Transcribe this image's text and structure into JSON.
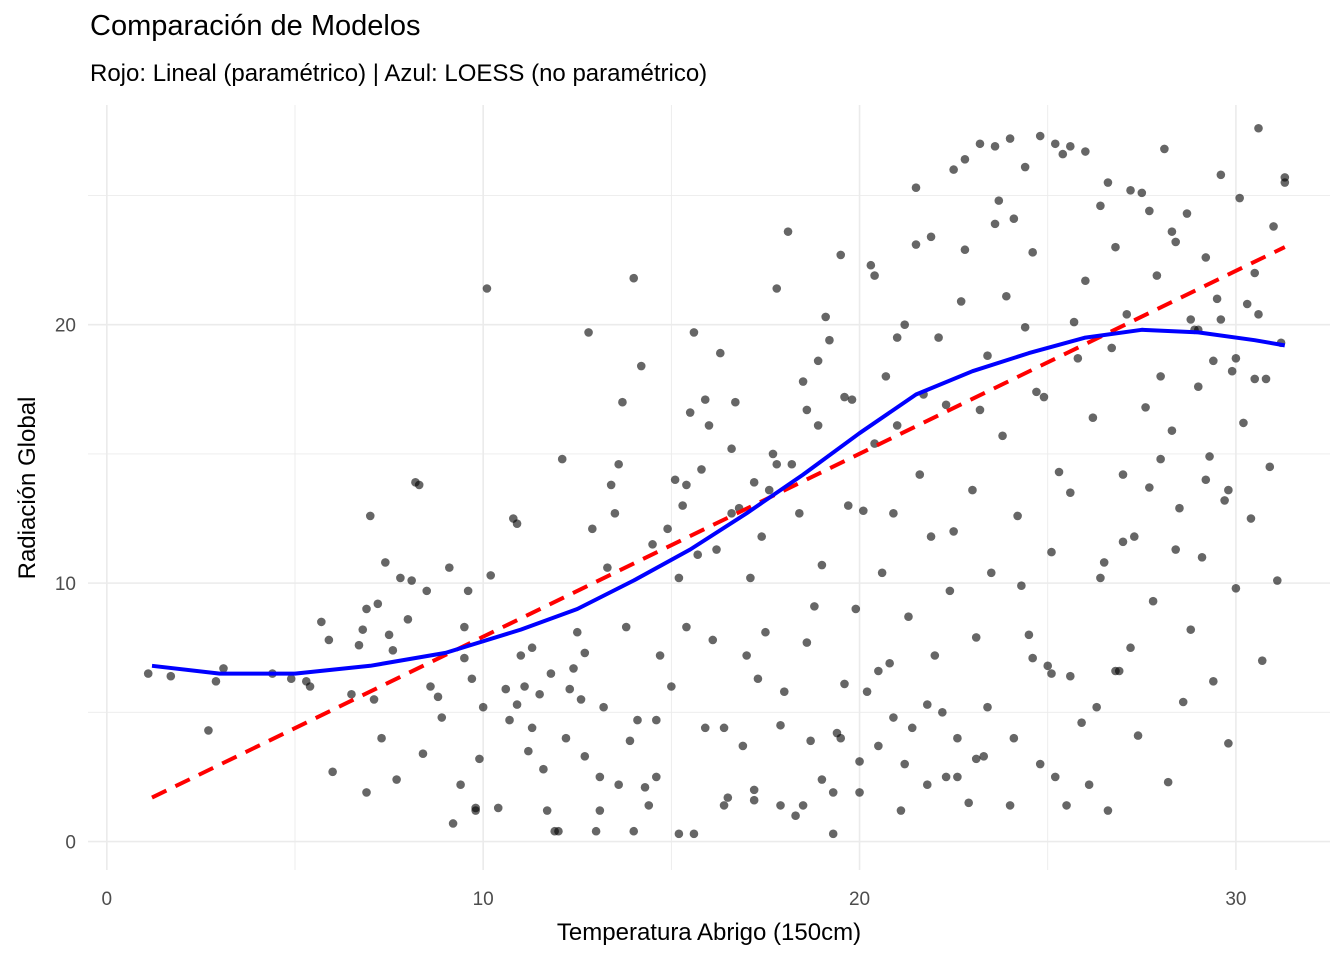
{
  "chart_data": {
    "type": "scatter",
    "title": "Comparación de Modelos",
    "subtitle": "Rojo: Lineal (paramétrico) | Azul: LOESS (no paramétrico)",
    "xlabel": "Temperatura Abrigo (150cm)",
    "ylabel": "Radiación Global",
    "xlim": [
      -0.5,
      32.5
    ],
    "ylim": [
      -1.1,
      28.5
    ],
    "x_ticks": [
      0,
      10,
      20,
      30
    ],
    "y_ticks": [
      0,
      10,
      20
    ],
    "x_tick_labels": [
      "0",
      "10",
      "20",
      "30"
    ],
    "y_tick_labels": [
      "0",
      "10",
      "20"
    ],
    "grid": true,
    "points": [
      [
        1.1,
        6.5
      ],
      [
        1.7,
        6.4
      ],
      [
        2.7,
        4.3
      ],
      [
        2.9,
        6.2
      ],
      [
        3.1,
        6.7
      ],
      [
        4.4,
        6.5
      ],
      [
        4.9,
        6.3
      ],
      [
        5.3,
        6.2
      ],
      [
        5.4,
        6.0
      ],
      [
        5.7,
        8.5
      ],
      [
        5.9,
        7.8
      ],
      [
        6.0,
        2.7
      ],
      [
        6.5,
        5.7
      ],
      [
        6.7,
        7.6
      ],
      [
        6.8,
        8.2
      ],
      [
        6.9,
        9.0
      ],
      [
        6.9,
        1.9
      ],
      [
        7.0,
        12.6
      ],
      [
        7.1,
        5.5
      ],
      [
        7.2,
        9.2
      ],
      [
        7.3,
        4.0
      ],
      [
        7.4,
        10.8
      ],
      [
        7.5,
        8.0
      ],
      [
        7.6,
        7.4
      ],
      [
        7.7,
        2.4
      ],
      [
        7.8,
        10.2
      ],
      [
        8.0,
        8.6
      ],
      [
        8.1,
        10.1
      ],
      [
        8.2,
        13.9
      ],
      [
        8.3,
        13.8
      ],
      [
        8.4,
        3.4
      ],
      [
        8.5,
        9.7
      ],
      [
        8.6,
        6.0
      ],
      [
        8.8,
        5.6
      ],
      [
        8.9,
        4.8
      ],
      [
        9.1,
        10.6
      ],
      [
        9.4,
        2.2
      ],
      [
        9.5,
        7.1
      ],
      [
        9.5,
        8.3
      ],
      [
        9.6,
        9.7
      ],
      [
        9.7,
        6.3
      ],
      [
        9.8,
        1.2
      ],
      [
        9.9,
        3.2
      ],
      [
        10.0,
        5.2
      ],
      [
        10.1,
        21.4
      ],
      [
        10.2,
        10.3
      ],
      [
        10.4,
        1.3
      ],
      [
        10.6,
        5.9
      ],
      [
        10.7,
        4.7
      ],
      [
        10.8,
        12.5
      ],
      [
        10.9,
        12.3
      ],
      [
        11.0,
        7.2
      ],
      [
        11.1,
        6.0
      ],
      [
        11.2,
        3.5
      ],
      [
        11.3,
        7.5
      ],
      [
        11.5,
        5.7
      ],
      [
        11.6,
        2.8
      ],
      [
        11.7,
        1.2
      ],
      [
        11.8,
        6.5
      ],
      [
        11.9,
        0.4
      ],
      [
        12.1,
        14.8
      ],
      [
        12.2,
        4.0
      ],
      [
        12.3,
        5.9
      ],
      [
        12.4,
        6.7
      ],
      [
        12.5,
        8.1
      ],
      [
        12.6,
        5.5
      ],
      [
        12.7,
        7.3
      ],
      [
        12.8,
        19.7
      ],
      [
        12.9,
        12.1
      ],
      [
        13.0,
        0.4
      ],
      [
        13.1,
        2.5
      ],
      [
        13.2,
        5.2
      ],
      [
        13.3,
        10.6
      ],
      [
        13.4,
        13.8
      ],
      [
        13.5,
        12.7
      ],
      [
        13.6,
        14.6
      ],
      [
        13.7,
        17.0
      ],
      [
        13.8,
        8.3
      ],
      [
        13.9,
        3.9
      ],
      [
        14.0,
        21.8
      ],
      [
        14.1,
        4.7
      ],
      [
        14.2,
        18.4
      ],
      [
        14.3,
        2.1
      ],
      [
        14.4,
        1.4
      ],
      [
        14.5,
        11.5
      ],
      [
        14.6,
        2.5
      ],
      [
        14.7,
        7.2
      ],
      [
        14.9,
        12.1
      ],
      [
        15.0,
        6.0
      ],
      [
        15.1,
        14.0
      ],
      [
        15.2,
        10.2
      ],
      [
        15.3,
        13.0
      ],
      [
        15.4,
        8.3
      ],
      [
        15.5,
        16.6
      ],
      [
        15.6,
        19.7
      ],
      [
        15.7,
        11.1
      ],
      [
        15.8,
        14.4
      ],
      [
        15.9,
        4.4
      ],
      [
        16.0,
        16.1
      ],
      [
        16.1,
        7.8
      ],
      [
        16.2,
        11.3
      ],
      [
        16.3,
        18.9
      ],
      [
        16.4,
        4.4
      ],
      [
        16.5,
        1.7
      ],
      [
        16.6,
        15.2
      ],
      [
        16.7,
        17.0
      ],
      [
        16.8,
        12.9
      ],
      [
        16.9,
        3.7
      ],
      [
        17.0,
        7.2
      ],
      [
        17.1,
        10.2
      ],
      [
        17.2,
        2.0
      ],
      [
        17.3,
        6.3
      ],
      [
        17.4,
        11.8
      ],
      [
        17.5,
        8.1
      ],
      [
        17.6,
        13.6
      ],
      [
        17.7,
        15.0
      ],
      [
        17.8,
        21.4
      ],
      [
        17.9,
        4.5
      ],
      [
        18.0,
        5.8
      ],
      [
        18.1,
        23.6
      ],
      [
        18.2,
        14.6
      ],
      [
        18.3,
        1.0
      ],
      [
        18.4,
        12.7
      ],
      [
        18.5,
        17.8
      ],
      [
        18.6,
        7.7
      ],
      [
        18.7,
        3.9
      ],
      [
        18.8,
        9.1
      ],
      [
        18.9,
        16.1
      ],
      [
        19.0,
        10.7
      ],
      [
        19.1,
        20.3
      ],
      [
        19.2,
        19.4
      ],
      [
        19.3,
        0.3
      ],
      [
        19.4,
        4.2
      ],
      [
        19.5,
        22.7
      ],
      [
        19.6,
        6.1
      ],
      [
        19.7,
        13.0
      ],
      [
        19.8,
        17.1
      ],
      [
        19.9,
        9.0
      ],
      [
        20.0,
        1.9
      ],
      [
        20.1,
        12.8
      ],
      [
        20.2,
        5.8
      ],
      [
        20.3,
        22.3
      ],
      [
        20.4,
        15.4
      ],
      [
        20.5,
        3.7
      ],
      [
        20.6,
        10.4
      ],
      [
        20.7,
        18.0
      ],
      [
        20.8,
        6.9
      ],
      [
        20.9,
        12.7
      ],
      [
        21.0,
        16.1
      ],
      [
        21.1,
        1.2
      ],
      [
        21.2,
        20.0
      ],
      [
        21.3,
        8.7
      ],
      [
        21.4,
        4.4
      ],
      [
        21.5,
        23.1
      ],
      [
        21.6,
        14.2
      ],
      [
        21.7,
        17.3
      ],
      [
        21.8,
        2.2
      ],
      [
        21.9,
        11.8
      ],
      [
        22.0,
        7.2
      ],
      [
        22.1,
        19.5
      ],
      [
        22.2,
        5.0
      ],
      [
        22.3,
        16.9
      ],
      [
        22.4,
        9.7
      ],
      [
        22.5,
        12.0
      ],
      [
        22.6,
        4.0
      ],
      [
        22.7,
        20.9
      ],
      [
        22.8,
        22.9
      ],
      [
        22.9,
        1.5
      ],
      [
        23.0,
        13.6
      ],
      [
        23.1,
        7.9
      ],
      [
        23.2,
        16.7
      ],
      [
        23.3,
        3.3
      ],
      [
        23.4,
        18.8
      ],
      [
        23.5,
        10.4
      ],
      [
        23.6,
        23.9
      ],
      [
        23.7,
        24.8
      ],
      [
        23.8,
        15.7
      ],
      [
        23.9,
        21.1
      ],
      [
        24.0,
        1.4
      ],
      [
        24.1,
        24.1
      ],
      [
        24.2,
        12.6
      ],
      [
        24.3,
        9.9
      ],
      [
        24.4,
        19.9
      ],
      [
        24.5,
        8.0
      ],
      [
        24.6,
        22.8
      ],
      [
        24.7,
        17.4
      ],
      [
        24.8,
        3.0
      ],
      [
        24.9,
        17.2
      ],
      [
        25.0,
        6.8
      ],
      [
        25.1,
        11.2
      ],
      [
        25.2,
        2.5
      ],
      [
        25.3,
        14.3
      ],
      [
        25.4,
        26.6
      ],
      [
        25.5,
        1.4
      ],
      [
        25.6,
        13.5
      ],
      [
        25.7,
        20.1
      ],
      [
        25.8,
        18.7
      ],
      [
        25.9,
        4.6
      ],
      [
        26.0,
        21.7
      ],
      [
        26.1,
        2.2
      ],
      [
        26.2,
        16.4
      ],
      [
        26.3,
        5.2
      ],
      [
        26.4,
        24.6
      ],
      [
        26.5,
        10.8
      ],
      [
        26.6,
        1.2
      ],
      [
        26.7,
        19.1
      ],
      [
        26.8,
        23.0
      ],
      [
        26.9,
        6.6
      ],
      [
        27.0,
        14.2
      ],
      [
        27.1,
        20.4
      ],
      [
        27.2,
        7.5
      ],
      [
        27.3,
        11.8
      ],
      [
        27.4,
        4.1
      ],
      [
        27.5,
        25.1
      ],
      [
        27.6,
        16.8
      ],
      [
        27.7,
        13.7
      ],
      [
        27.8,
        9.3
      ],
      [
        27.9,
        21.9
      ],
      [
        28.0,
        18.0
      ],
      [
        28.1,
        26.8
      ],
      [
        28.2,
        2.3
      ],
      [
        28.3,
        15.9
      ],
      [
        28.4,
        23.2
      ],
      [
        28.5,
        12.9
      ],
      [
        28.6,
        5.4
      ],
      [
        28.7,
        24.3
      ],
      [
        28.8,
        8.2
      ],
      [
        28.9,
        19.8
      ],
      [
        29.0,
        17.6
      ],
      [
        29.1,
        11.0
      ],
      [
        29.2,
        22.6
      ],
      [
        29.3,
        14.9
      ],
      [
        29.4,
        6.2
      ],
      [
        29.5,
        21.0
      ],
      [
        29.6,
        25.8
      ],
      [
        29.7,
        13.2
      ],
      [
        29.8,
        3.8
      ],
      [
        29.9,
        18.2
      ],
      [
        30.0,
        9.8
      ],
      [
        30.1,
        24.9
      ],
      [
        30.2,
        16.2
      ],
      [
        30.3,
        20.8
      ],
      [
        30.4,
        12.5
      ],
      [
        30.5,
        22.0
      ],
      [
        30.6,
        27.6
      ],
      [
        30.7,
        7.0
      ],
      [
        30.8,
        17.9
      ],
      [
        30.9,
        14.5
      ],
      [
        31.0,
        23.8
      ],
      [
        31.1,
        10.1
      ],
      [
        31.2,
        19.3
      ],
      [
        31.3,
        25.5
      ],
      [
        9.2,
        0.7
      ],
      [
        9.8,
        1.3
      ],
      [
        10.9,
        5.3
      ],
      [
        11.3,
        4.4
      ],
      [
        12.0,
        0.4
      ],
      [
        12.7,
        3.3
      ],
      [
        13.1,
        1.2
      ],
      [
        13.6,
        2.2
      ],
      [
        14.0,
        0.4
      ],
      [
        14.6,
        4.7
      ],
      [
        15.2,
        0.3
      ],
      [
        15.6,
        0.3
      ],
      [
        16.4,
        1.4
      ],
      [
        17.2,
        1.6
      ],
      [
        17.9,
        1.4
      ],
      [
        18.5,
        1.4
      ],
      [
        19.0,
        2.4
      ],
      [
        19.3,
        1.9
      ],
      [
        19.5,
        4.0
      ],
      [
        20.0,
        3.1
      ],
      [
        20.5,
        6.6
      ],
      [
        20.9,
        4.8
      ],
      [
        21.2,
        3.0
      ],
      [
        21.8,
        5.3
      ],
      [
        22.3,
        2.5
      ],
      [
        22.6,
        2.5
      ],
      [
        23.1,
        3.2
      ],
      [
        23.4,
        5.2
      ],
      [
        24.1,
        4.0
      ],
      [
        24.6,
        7.1
      ],
      [
        25.1,
        6.5
      ],
      [
        25.6,
        6.4
      ],
      [
        26.4,
        10.2
      ],
      [
        26.8,
        6.6
      ],
      [
        27.0,
        11.6
      ],
      [
        28.0,
        14.8
      ],
      [
        28.4,
        11.3
      ],
      [
        29.2,
        14.0
      ],
      [
        29.8,
        13.6
      ],
      [
        30.6,
        20.4
      ],
      [
        31.3,
        25.7
      ],
      [
        15.4,
        13.8
      ],
      [
        15.9,
        17.1
      ],
      [
        16.6,
        12.7
      ],
      [
        17.2,
        13.9
      ],
      [
        17.8,
        14.6
      ],
      [
        18.6,
        16.7
      ],
      [
        18.9,
        18.6
      ],
      [
        19.6,
        17.2
      ],
      [
        20.4,
        21.9
      ],
      [
        21.0,
        19.5
      ],
      [
        21.5,
        25.3
      ],
      [
        21.9,
        23.4
      ],
      [
        22.5,
        26.0
      ],
      [
        22.8,
        26.4
      ],
      [
        23.2,
        27.0
      ],
      [
        23.6,
        26.9
      ],
      [
        24.0,
        27.2
      ],
      [
        24.4,
        26.1
      ],
      [
        24.8,
        27.3
      ],
      [
        25.2,
        27.0
      ],
      [
        25.6,
        26.9
      ],
      [
        26.0,
        26.7
      ],
      [
        26.6,
        25.5
      ],
      [
        27.2,
        25.2
      ],
      [
        27.7,
        24.4
      ],
      [
        28.3,
        23.6
      ],
      [
        28.8,
        20.2
      ],
      [
        29.0,
        19.8
      ],
      [
        29.4,
        18.6
      ],
      [
        29.6,
        20.2
      ],
      [
        30.0,
        18.7
      ],
      [
        30.5,
        17.9
      ]
    ],
    "series": [
      {
        "name": "Rojo: Lineal (paramétrico)",
        "type": "line",
        "color": "#ff0000",
        "dash": true,
        "points": [
          [
            1.2,
            1.7
          ],
          [
            31.3,
            23.0
          ]
        ]
      },
      {
        "name": "Azul: LOESS (no paramétrico)",
        "type": "line",
        "color": "#0000ff",
        "dash": false,
        "points": [
          [
            1.2,
            6.8
          ],
          [
            3,
            6.5
          ],
          [
            5,
            6.5
          ],
          [
            7,
            6.8
          ],
          [
            9,
            7.3
          ],
          [
            11,
            8.2
          ],
          [
            12.5,
            9.0
          ],
          [
            14,
            10.1
          ],
          [
            15.5,
            11.3
          ],
          [
            17,
            12.7
          ],
          [
            18.5,
            14.2
          ],
          [
            20,
            15.8
          ],
          [
            21.5,
            17.3
          ],
          [
            23,
            18.2
          ],
          [
            24.5,
            18.9
          ],
          [
            26,
            19.5
          ],
          [
            27.5,
            19.8
          ],
          [
            29,
            19.7
          ],
          [
            30.5,
            19.4
          ],
          [
            31.3,
            19.2
          ]
        ]
      }
    ],
    "colors": {
      "points": "#000000",
      "grid": "#ebebeb",
      "linear": "#ff0000",
      "loess": "#0000ff"
    }
  }
}
